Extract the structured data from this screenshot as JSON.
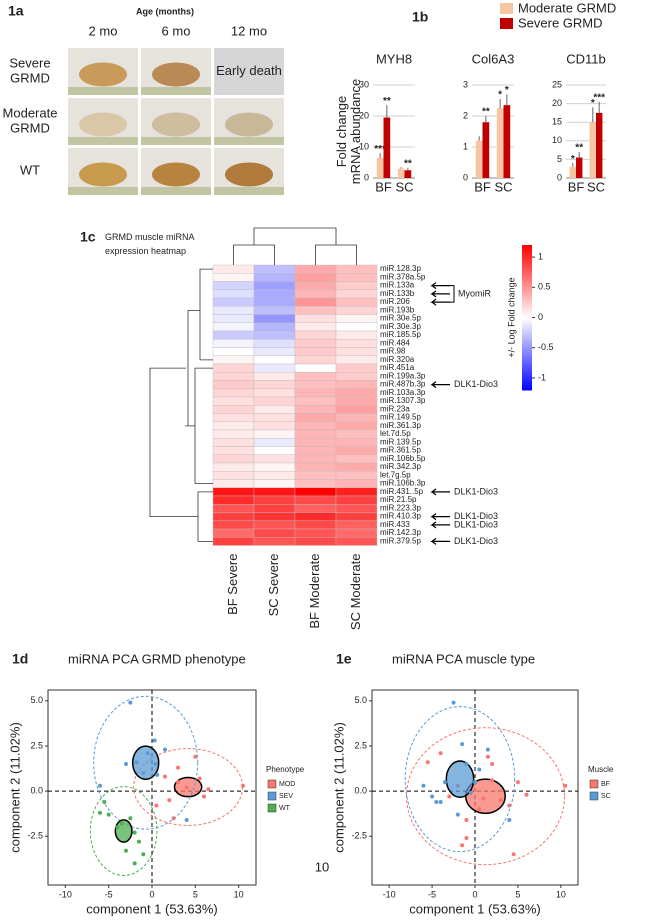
{
  "page_number": "10",
  "panel_a": {
    "label": "1a",
    "axis_title": "Age (months)",
    "columns": [
      "2 mo",
      "6 mo",
      "12 mo"
    ],
    "rows": [
      "Severe GRMD",
      "Moderate GRMD",
      "WT"
    ],
    "early_death": "Early death"
  },
  "chart_data": [
    {
      "type": "bar",
      "panel_label": "1b",
      "title": "MYH8",
      "ylabel": "Fold change mRNA abundance",
      "categories": [
        "BF",
        "SC"
      ],
      "ylim": [
        0,
        30
      ],
      "yticks": [
        0,
        10,
        20,
        30
      ],
      "grid": true,
      "series": [
        {
          "name": "Moderate GRMD",
          "color": "#f6c6a2",
          "values": [
            6.5,
            3
          ],
          "errors": [
            1.5,
            0.5
          ],
          "stars": [
            "***",
            null
          ]
        },
        {
          "name": "Severe GRMD",
          "color": "#c00000",
          "values": [
            19.5,
            2.5
          ],
          "errors": [
            4,
            0.8
          ],
          "stars": [
            "**",
            "**"
          ]
        }
      ]
    },
    {
      "type": "bar",
      "title": "Col6A3",
      "categories": [
        "BF",
        "SC"
      ],
      "ylim": [
        0,
        3
      ],
      "yticks": [
        0,
        1,
        2,
        3
      ],
      "grid": true,
      "series": [
        {
          "name": "Moderate GRMD",
          "color": "#f6c6a2",
          "values": [
            1.2,
            2.25
          ],
          "errors": [
            0.15,
            0.3
          ],
          "stars": [
            null,
            "*"
          ]
        },
        {
          "name": "Severe GRMD",
          "color": "#c00000",
          "values": [
            1.8,
            2.35
          ],
          "errors": [
            0.2,
            0.35
          ],
          "stars": [
            "**",
            "*"
          ]
        }
      ]
    },
    {
      "type": "bar",
      "title": "CD11b",
      "categories": [
        "BF",
        "SC"
      ],
      "ylim": [
        0,
        25
      ],
      "yticks": [
        0,
        5,
        10,
        15,
        20,
        25
      ],
      "grid": true,
      "series": [
        {
          "name": "Moderate GRMD",
          "color": "#f6c6a2",
          "values": [
            3,
            15
          ],
          "errors": [
            1,
            4
          ],
          "stars": [
            "*",
            "*"
          ]
        },
        {
          "name": "Severe GRMD",
          "color": "#c00000",
          "values": [
            5.5,
            17.5
          ],
          "errors": [
            1.5,
            3
          ],
          "stars": [
            "**",
            "***"
          ]
        }
      ]
    },
    {
      "type": "heatmap",
      "panel_label": "1c",
      "title": "GRMD muscle miRNA expression heatmap",
      "colorbar_label": "+/- Log Fold change",
      "zlim": [
        -1.2,
        1.2
      ],
      "zticks": [
        1,
        0.5,
        0,
        -0.5,
        -1
      ],
      "columns": [
        "BF Severe",
        "SC Severe",
        "BF Moderate",
        "SC Moderate"
      ],
      "rows": [
        "miR.128.3p",
        "miR.378a.5p",
        "miR.133a",
        "miR.133b",
        "miR.206",
        "miR.193b",
        "miR.30e.5p",
        "miR.30e.3p",
        "miR.185.5p",
        "miR.484",
        "miR.98",
        "miR.320a",
        "miR.451a",
        "miR.199a.3p",
        "miR.487b.3p",
        "miR.103a.3p",
        "miR.1307.3p",
        "miR.23a",
        "miR.149.5p",
        "miR.361.3p",
        "let.7d.5p",
        "miR.139.5p",
        "miR.361.5p",
        "miR.106b.5p",
        "miR.342.3p",
        "let.7g.5p",
        "miR.106b.3p",
        "miR.431..5p",
        "miR.21.5p",
        "miR.223.3p",
        "miR.410.3p",
        "miR.433",
        "miR.142.3p",
        "miR.379.5p"
      ],
      "values": [
        [
          0.1,
          -0.3,
          0.4,
          0.3
        ],
        [
          0.05,
          -0.35,
          0.45,
          0.3
        ],
        [
          -0.2,
          -0.45,
          0.4,
          0.25
        ],
        [
          -0.15,
          -0.4,
          0.35,
          0.2
        ],
        [
          -0.25,
          -0.4,
          0.5,
          0.3
        ],
        [
          -0.1,
          -0.3,
          0.3,
          0.2
        ],
        [
          -0.1,
          -0.5,
          0.15,
          0.05
        ],
        [
          -0.05,
          -0.35,
          0.1,
          0
        ],
        [
          -0.25,
          -0.3,
          0.2,
          0.1
        ],
        [
          -0.05,
          -0.15,
          0.25,
          0.15
        ],
        [
          0,
          -0.1,
          0.25,
          0.15
        ],
        [
          0.05,
          0,
          0.2,
          0.1
        ],
        [
          0.2,
          -0.1,
          0,
          0.25
        ],
        [
          0.2,
          0.1,
          0.3,
          0.25
        ],
        [
          0.25,
          0.2,
          0.3,
          0.35
        ],
        [
          0.2,
          0.15,
          0.35,
          0.4
        ],
        [
          0.15,
          0.2,
          0.3,
          0.4
        ],
        [
          0.2,
          0.1,
          0.35,
          0.45
        ],
        [
          0.15,
          0.15,
          0.4,
          0.35
        ],
        [
          0.1,
          0.15,
          0.35,
          0.4
        ],
        [
          0.1,
          0.05,
          0.35,
          0.3
        ],
        [
          0.15,
          -0.1,
          0.35,
          0.35
        ],
        [
          0.15,
          0,
          0.35,
          0.4
        ],
        [
          0.2,
          0.15,
          0.35,
          0.3
        ],
        [
          0.1,
          0.05,
          0.35,
          0.4
        ],
        [
          0.15,
          0.1,
          0.3,
          0.3
        ],
        [
          0.1,
          0.05,
          0.3,
          0.35
        ],
        [
          1.1,
          1.1,
          1.2,
          1.05
        ],
        [
          1.0,
          0.9,
          0.85,
          0.9
        ],
        [
          0.8,
          0.9,
          0.75,
          0.8
        ],
        [
          0.9,
          0.95,
          1.0,
          0.9
        ],
        [
          0.85,
          0.8,
          0.85,
          0.75
        ],
        [
          0.7,
          0.85,
          0.8,
          0.7
        ],
        [
          0.9,
          0.8,
          0.85,
          0.8
        ]
      ],
      "annotations": [
        {
          "label": "MyomiR",
          "rows": [
            "miR.133a",
            "miR.133b",
            "miR.206"
          ]
        },
        {
          "label": "DLK1-Dio3",
          "rows": [
            "miR.487b.3p"
          ]
        },
        {
          "label": "DLK1-Dio3",
          "rows": [
            "miR.431..5p"
          ]
        },
        {
          "label": "DLK1-Dio3",
          "rows": [
            "miR.410.3p"
          ]
        },
        {
          "label": "DLK1-Dio3",
          "rows": [
            "miR.433"
          ]
        },
        {
          "label": "DLK1-Dio3",
          "rows": [
            "miR.379.5p"
          ]
        }
      ]
    },
    {
      "type": "scatter",
      "panel_label": "1d",
      "title": "miRNA PCA GRMD phenotype",
      "xlabel": "component 1 (53.63%)",
      "ylabel": "component 2 (11.02%)",
      "legend_title": "Phenotype",
      "xlim": [
        -12,
        12
      ],
      "ylim": [
        -5.2,
        5.6
      ],
      "xticks": [
        -10,
        -5,
        0,
        5,
        10
      ],
      "yticks": [
        -2.5,
        {
          "value": 0,
          "label": "0.0"
        },
        2.5,
        {
          "value": 5,
          "label": "5.0"
        }
      ],
      "series": [
        {
          "name": "MOD",
          "color": "#f8766d",
          "x": [
            1.5,
            3,
            5.5,
            4,
            6,
            2,
            0.5,
            10.5,
            6.5,
            3,
            5,
            2.5
          ],
          "y": [
            0.8,
            0.5,
            0.7,
            0.2,
            -0.3,
            -0.5,
            -0.8,
            0.3,
            0.1,
            1.3,
            1.9,
            -1.5
          ]
        },
        {
          "name": "SEV",
          "color": "#5b9bd5",
          "x": [
            -2.5,
            -6,
            -1.8,
            0.3,
            1.5,
            -1,
            -3,
            0.6,
            0.4,
            4,
            -0.5
          ],
          "y": [
            4.9,
            0.3,
            1.6,
            2.8,
            2.3,
            1,
            1.5,
            0.9,
            1.5,
            -1.6,
            2.1
          ]
        },
        {
          "name": "WT",
          "color": "#4caf50",
          "x": [
            -6,
            -5,
            -4,
            -3.5,
            -2,
            -1.5,
            -1,
            -3,
            -2,
            -5.5,
            -2.5
          ],
          "y": [
            -1.2,
            -1.3,
            -2,
            -1.8,
            -2.3,
            -2.8,
            -3.5,
            -3.3,
            -4,
            -0.6,
            -1.5
          ]
        }
      ]
    },
    {
      "type": "scatter",
      "panel_label": "1e",
      "title": "miRNA PCA muscle type",
      "xlabel": "component 1 (53.63%)",
      "ylabel": "component 2 (11.02%)",
      "legend_title": "Muscle",
      "xlim": [
        -12,
        12
      ],
      "ylim": [
        -5.2,
        5.6
      ],
      "xticks": [
        -10,
        -5,
        0,
        5,
        10
      ],
      "yticks": [
        -2.5,
        {
          "value": 0,
          "label": "0.0"
        },
        2.5,
        {
          "value": 5,
          "label": "5.0"
        }
      ],
      "series": [
        {
          "name": "BF",
          "color": "#f8766d",
          "x": [
            10.5,
            6,
            5,
            4,
            3,
            2,
            1.5,
            0.5,
            -1,
            -1,
            -2,
            -4,
            -5.5,
            -3,
            1,
            4.5,
            2,
            -1.5
          ],
          "y": [
            0.3,
            -0.2,
            0.5,
            -0.8,
            -0.5,
            0.6,
            1.9,
            -1,
            -1.6,
            -2.6,
            0.3,
            2.1,
            1.6,
            -0.3,
            -0.4,
            -3.5,
            1.5,
            -3
          ]
        },
        {
          "name": "SC",
          "color": "#5b9bd5",
          "x": [
            -2.5,
            -6,
            -5,
            -4.5,
            -3.5,
            -2,
            -1,
            0,
            1.5,
            4,
            -1.5,
            -0.5,
            -4,
            0.5
          ],
          "y": [
            4.9,
            0.3,
            -0.3,
            -0.6,
            0.5,
            -1.3,
            1.5,
            0.5,
            2.3,
            -1.6,
            2.6,
            -0.1,
            -0.6,
            1.2
          ]
        }
      ]
    }
  ]
}
